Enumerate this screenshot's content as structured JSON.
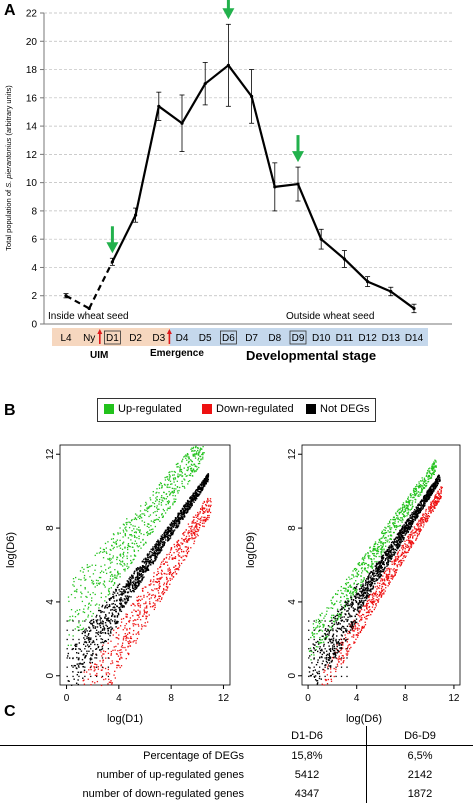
{
  "panels": {
    "a": "A",
    "b": "B",
    "c": "C"
  },
  "panel_a": {
    "ylabel_prefix": "Total population of ",
    "ylabel_species": "S. pierantonius",
    "ylabel_suffix": " (arbitrary units)",
    "xlabel": "Developmental stage",
    "inside_label": "Inside wheat seed",
    "outside_label": "Outside wheat seed",
    "uim_label": "UIM",
    "emergence_label": "Emergence",
    "boxed_stages": [
      "D1",
      "D6",
      "D9"
    ],
    "arrow_stages": [
      "D1",
      "D6",
      "D9"
    ],
    "colors": {
      "inside_band": "#f6d7bf",
      "outside_band": "#c5d8ec",
      "arrow_green": "#22b14c",
      "arrow_red": "#e0191b"
    }
  },
  "legend_b": {
    "items": [
      {
        "label": "Up-regulated",
        "color": "#22c21c"
      },
      {
        "label": "Down-regulated",
        "color": "#ee1111"
      },
      {
        "label": "Not DEGs",
        "color": "#000000"
      }
    ]
  },
  "scatter_left": {
    "xlabel": "log(D1)",
    "ylabel": "log(D6)"
  },
  "scatter_right": {
    "xlabel": "log(D6)",
    "ylabel": "log(D9)"
  },
  "table": {
    "headers": [
      "",
      "D1-D6",
      "D6-D9"
    ],
    "rows": [
      [
        "Percentage of DEGs",
        "15,8%",
        "6,5%"
      ],
      [
        "number of up-regulated genes",
        "5412",
        "2142"
      ],
      [
        "number of down-regulated genes",
        "4347",
        "1872"
      ]
    ]
  },
  "chart_data": [
    {
      "type": "line",
      "title": "",
      "ylabel": "Total population of S. pierantonius (arbitrary units)",
      "xlabel": "Developmental stage",
      "categories": [
        "L4",
        "Ny",
        "D1",
        "D2",
        "D3",
        "D4",
        "D5",
        "D6",
        "D7",
        "D8",
        "D9",
        "D10",
        "D11",
        "D12",
        "D13",
        "D14"
      ],
      "ylim": [
        0,
        22
      ],
      "yticks": [
        0,
        2,
        4,
        6,
        8,
        10,
        12,
        14,
        16,
        18,
        20,
        22
      ],
      "series": [
        {
          "values": [
            2.0,
            1.1,
            4.4,
            7.7,
            15.4,
            14.2,
            17.0,
            18.3,
            16.1,
            9.7,
            9.9,
            6.0,
            4.6,
            3.0,
            2.3,
            1.1
          ],
          "errors": [
            0.15,
            0.0,
            0.25,
            0.5,
            1.0,
            2.0,
            1.5,
            2.9,
            1.9,
            1.7,
            1.2,
            0.7,
            0.6,
            0.35,
            0.3,
            0.3
          ],
          "dashed_segments": [
            [
              0,
              1
            ],
            [
              1,
              2
            ]
          ]
        }
      ]
    },
    {
      "type": "scatter",
      "xlabel": "log(D1)",
      "ylabel": "log(D6)",
      "xticks": [
        0,
        4,
        8,
        12
      ],
      "yticks": [
        0,
        4,
        8,
        12
      ],
      "xlim": [
        -0.5,
        12.5
      ],
      "ylim": [
        -0.5,
        12.5
      ],
      "series": [
        {
          "name": "Up-regulated",
          "trend": {
            "slope": 1.0,
            "intercept": 1.2
          }
        },
        {
          "name": "Down-regulated",
          "trend": {
            "slope": 1.0,
            "intercept": -1.0
          }
        },
        {
          "name": "Not DEGs",
          "trend": {
            "slope": 1.0,
            "intercept": 0.1
          }
        }
      ]
    },
    {
      "type": "scatter",
      "xlabel": "log(D6)",
      "ylabel": "log(D9)",
      "xticks": [
        0,
        4,
        8,
        12
      ],
      "yticks": [
        0,
        4,
        8,
        12
      ],
      "xlim": [
        -0.5,
        12.5
      ],
      "ylim": [
        -0.5,
        12.5
      ],
      "series": [
        {
          "name": "Up-regulated",
          "trend": {
            "slope": 1.0,
            "intercept": 0.6
          }
        },
        {
          "name": "Down-regulated",
          "trend": {
            "slope": 1.0,
            "intercept": -0.6
          }
        },
        {
          "name": "Not DEGs",
          "trend": {
            "slope": 1.0,
            "intercept": 0.0
          }
        }
      ]
    }
  ]
}
